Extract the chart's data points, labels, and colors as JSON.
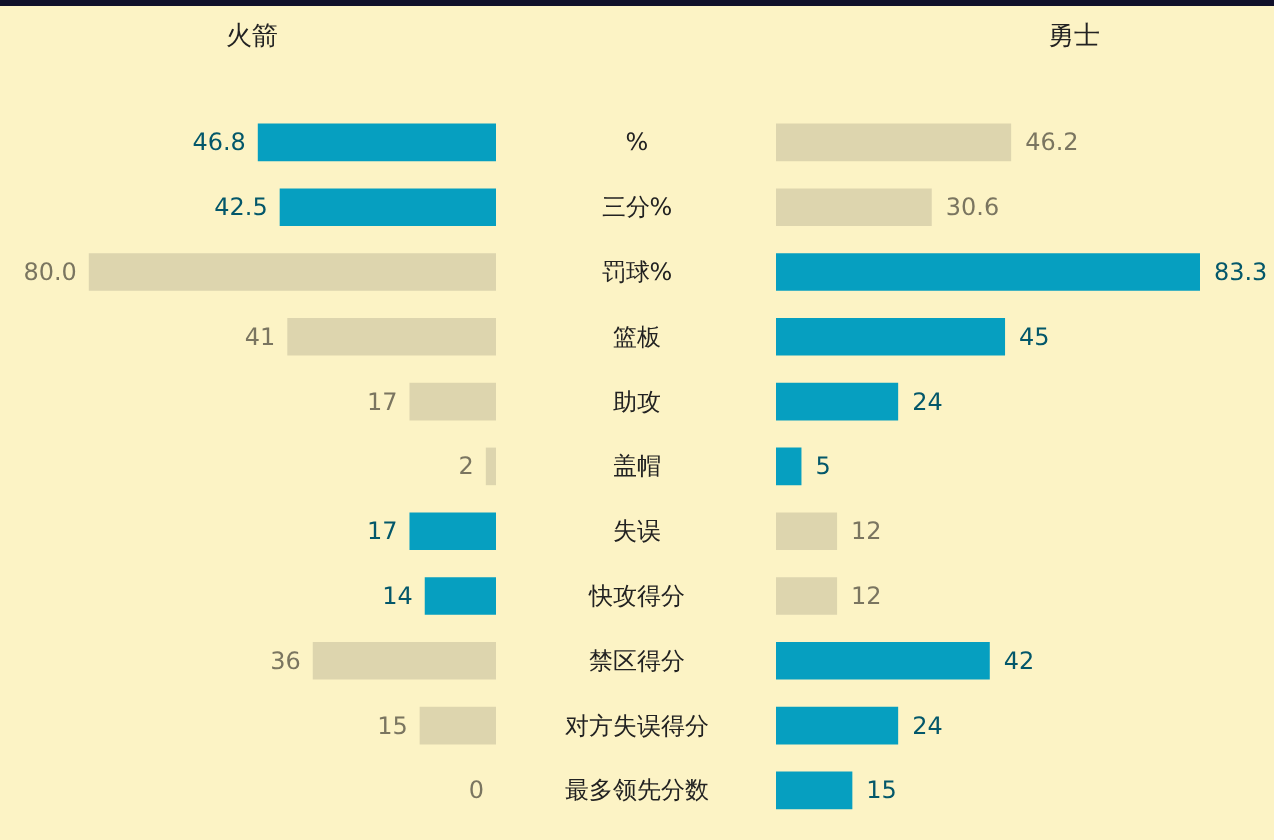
{
  "chart_data": [
    {
      "type": "bar",
      "orientation": "horizontal",
      "title": "火箭",
      "tick_labels": "y",
      "categories": [
        "%",
        "三分%",
        "罚球%",
        "篮板",
        "助攻",
        "盖帽",
        "失误",
        "快攻得分",
        "禁区得分",
        "对方失误得分",
        "最多领先分数"
      ],
      "values": [
        46.8,
        42.5,
        80.0,
        41,
        17,
        2,
        17,
        14,
        36,
        15,
        0
      ],
      "value_labels": [
        "46.8",
        "42.5",
        "80.0",
        "41",
        "17",
        "2",
        "17",
        "14",
        "36",
        "15",
        "0"
      ],
      "colors": [
        "#069fc0",
        "#069fc0",
        "#ddd5ae",
        "#ddd5ae",
        "#ddd5ae",
        "#ddd5ae",
        "#069fc0",
        "#069fc0",
        "#ddd5ae",
        "#ddd5ae",
        "#ddd5ae"
      ]
    },
    {
      "type": "bar",
      "orientation": "horizontal",
      "title": "勇士",
      "categories": [
        null,
        null,
        null,
        null,
        null,
        null,
        null,
        null,
        null,
        null,
        null
      ],
      "values": [
        46.2,
        30.6,
        83.3,
        45,
        24,
        5,
        12,
        12,
        42,
        24,
        15
      ],
      "value_labels": [
        "46.2",
        "30.6",
        "83.3",
        "45",
        "24",
        "5",
        "12",
        "12",
        "42",
        "24",
        "15"
      ],
      "colors": [
        "#ddd5ae",
        "#ddd5ae",
        "#069fc0",
        "#069fc0",
        "#069fc0",
        "#069fc0",
        "#ddd5ae",
        "#ddd5ae",
        "#069fc0",
        "#069fc0",
        "#069fc0"
      ]
    }
  ]
}
